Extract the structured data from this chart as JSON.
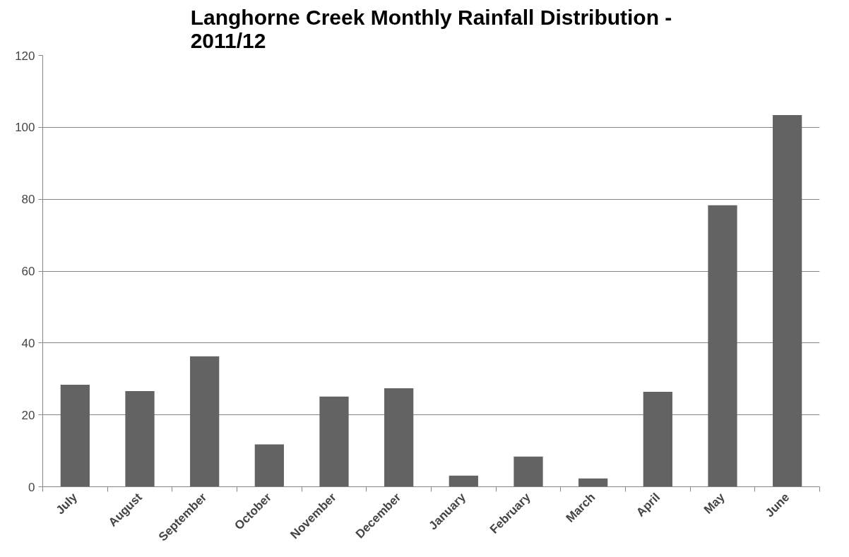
{
  "chart_data": {
    "type": "bar",
    "title": "Langhorne Creek Monthly Rainfall Distribution - 2011/12",
    "categories": [
      "July",
      "August",
      "September",
      "October",
      "November",
      "December",
      "January",
      "February",
      "March",
      "April",
      "May",
      "June"
    ],
    "values": [
      28.4,
      26.6,
      36.3,
      11.8,
      25.1,
      27.4,
      3.1,
      8.4,
      2.3,
      26.4,
      78.3,
      103.4
    ],
    "color": "#636363",
    "ylim": [
      0,
      120
    ],
    "yticks": [
      0,
      20,
      40,
      60,
      80,
      100,
      120
    ],
    "grid": "y"
  }
}
